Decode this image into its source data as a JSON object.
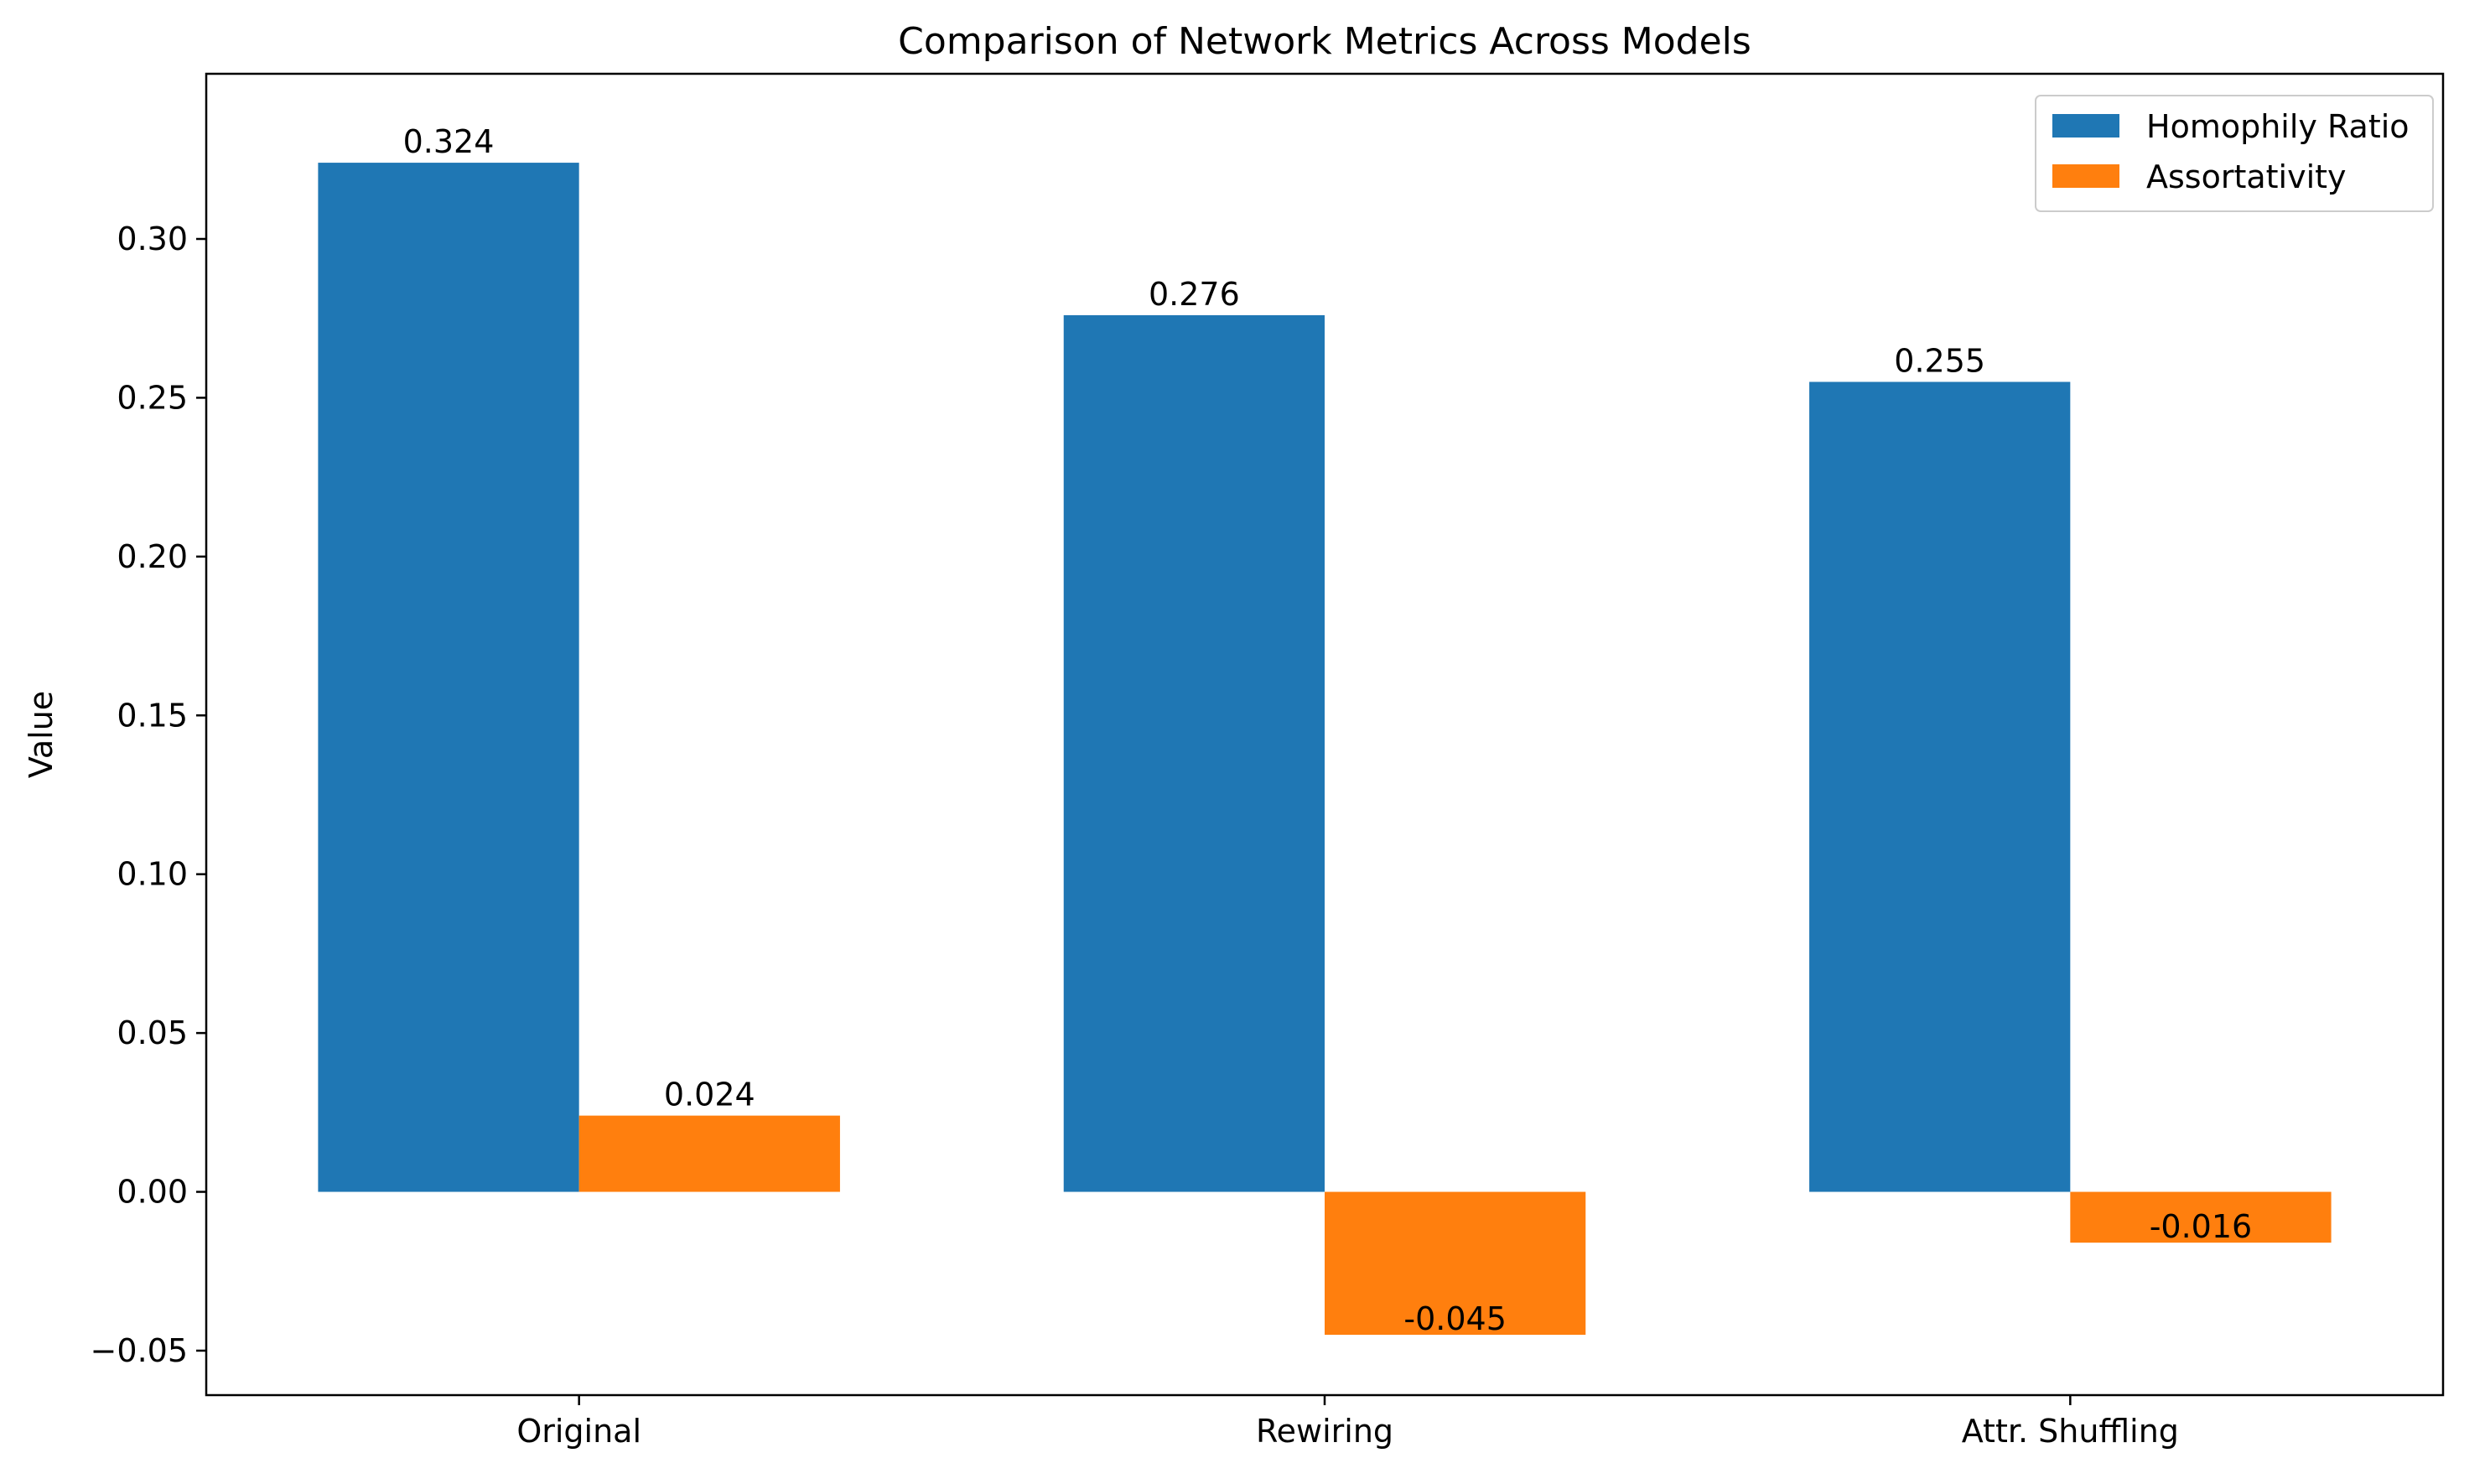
{
  "chart_data": {
    "type": "bar",
    "title": "Comparison of Network Metrics Across Models",
    "xlabel": "",
    "ylabel": "Value",
    "categories": [
      "Original",
      "Rewiring",
      "Attr. Shuffling"
    ],
    "series": [
      {
        "name": "Homophily Ratio",
        "color": "#1f77b4",
        "values": [
          0.324,
          0.276,
          0.255
        ],
        "labels": [
          "0.324",
          "0.276",
          "0.255"
        ]
      },
      {
        "name": "Assortativity",
        "color": "#ff7f0e",
        "values": [
          0.024,
          -0.045,
          -0.016
        ],
        "labels": [
          "0.024",
          "-0.045",
          "-0.016"
        ]
      }
    ],
    "ylim": [
      -0.064,
      0.352
    ],
    "yticks": [
      -0.05,
      0.0,
      0.05,
      0.1,
      0.15,
      0.2,
      0.25,
      0.3
    ],
    "ytick_labels": [
      "−0.05",
      "0.00",
      "0.05",
      "0.10",
      "0.15",
      "0.20",
      "0.25",
      "0.30"
    ],
    "legend_position": "top-right",
    "grid": false
  }
}
